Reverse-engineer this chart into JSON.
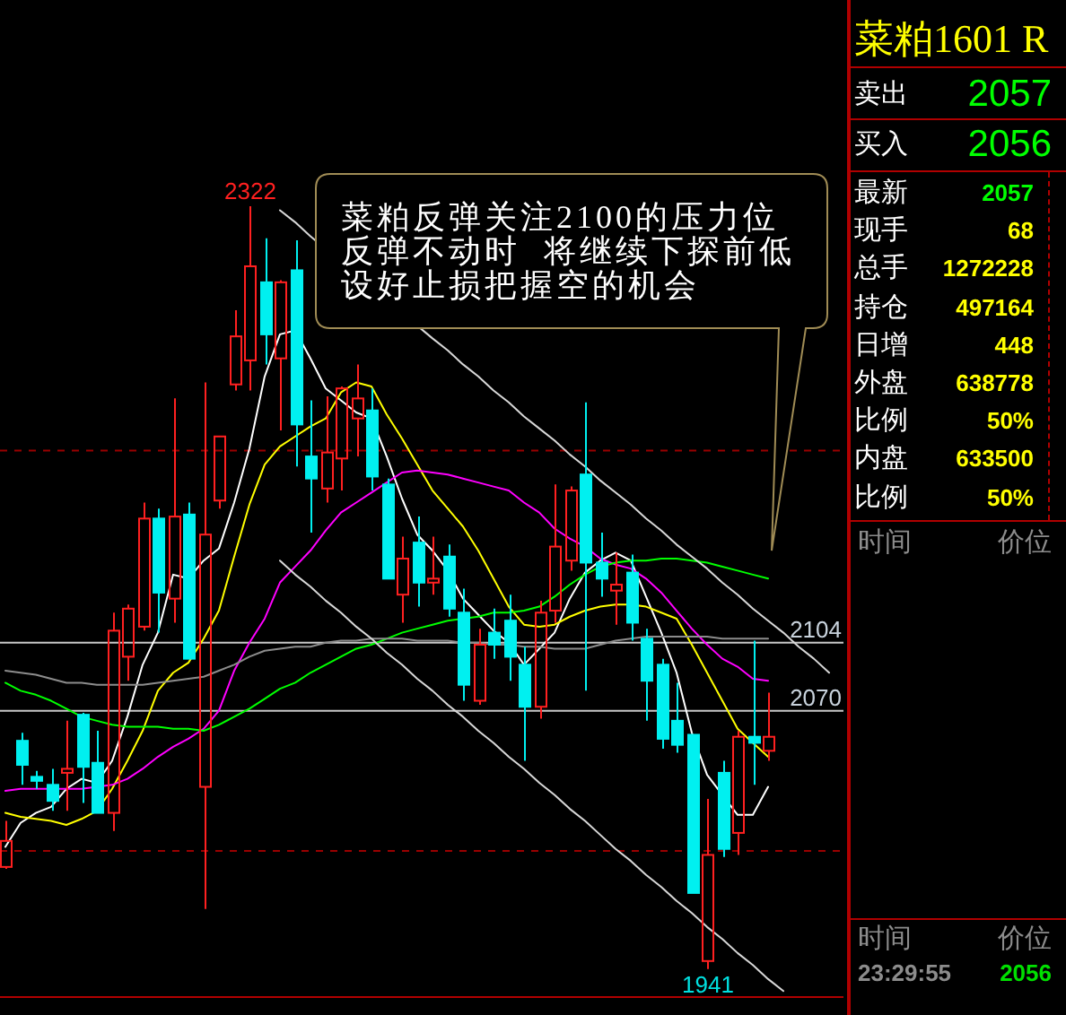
{
  "chart_data": [
    {
      "type": "candlestick",
      "categories": [
        null,
        null,
        null,
        null,
        null,
        null,
        null,
        null,
        null,
        null,
        null,
        null,
        null,
        null,
        null,
        null,
        null,
        null,
        null,
        null,
        null,
        null,
        null,
        null,
        null,
        null,
        null,
        null,
        null,
        null,
        null,
        null,
        null,
        null,
        null,
        null,
        null,
        null,
        null,
        null,
        null,
        null,
        null,
        null,
        null,
        null,
        null,
        null,
        null,
        null,
        null,
        null,
        null,
        null,
        null
      ],
      "ohlc": [
        [
          1992,
          2015,
          1991,
          2005
        ],
        [
          2055,
          2059,
          2033,
          2043
        ],
        [
          2037,
          2040,
          2031,
          2035
        ],
        [
          2033,
          2041,
          2020,
          2025
        ],
        [
          2039,
          2065,
          2020,
          2041
        ],
        [
          2068,
          2069,
          2024,
          2042
        ],
        [
          2044,
          2060,
          2019,
          2019
        ],
        [
          2019,
          2119,
          2010,
          2110
        ],
        [
          2097,
          2123,
          2085,
          2121
        ],
        [
          2112,
          2174,
          2110,
          2166
        ],
        [
          2166,
          2171,
          2109,
          2129
        ],
        [
          2126,
          2226,
          2114,
          2167
        ],
        [
          2168,
          2174,
          2096,
          2096
        ],
        [
          2032,
          2234,
          1971,
          2158
        ],
        [
          2175,
          2207,
          2171,
          2207
        ],
        [
          2233,
          2270,
          2230,
          2257
        ],
        [
          2245,
          2322,
          2230,
          2292
        ],
        [
          2284,
          2306,
          2243,
          2258
        ],
        [
          2246,
          2285,
          2210,
          2284
        ],
        [
          2290,
          2305,
          2192,
          2213
        ],
        [
          2197,
          2225,
          2159,
          2186
        ],
        [
          2181,
          2227,
          2174,
          2199
        ],
        [
          2196,
          2232,
          2180,
          2231
        ],
        [
          2216,
          2243,
          2197,
          2226
        ],
        [
          2220,
          2231,
          2180,
          2187
        ],
        [
          2183,
          2186,
          2136,
          2136
        ],
        [
          2128,
          2157,
          2114,
          2146
        ],
        [
          2154,
          2167,
          2122,
          2134
        ],
        [
          2134,
          2157,
          2128,
          2136
        ],
        [
          2147,
          2153,
          2117,
          2121
        ],
        [
          2119,
          2131,
          2075,
          2083
        ],
        [
          2075,
          2111,
          2073,
          2103
        ],
        [
          2109,
          2121,
          2096,
          2103
        ],
        [
          2115,
          2128,
          2085,
          2097
        ],
        [
          2093,
          2102,
          2045,
          2072
        ],
        [
          2072,
          2125,
          2066,
          2119
        ],
        [
          2120,
          2183,
          2114,
          2152
        ],
        [
          2145,
          2182,
          2140,
          2180
        ],
        [
          2188,
          2224,
          2080,
          2144
        ],
        [
          2144,
          2159,
          2127,
          2136
        ],
        [
          2130,
          2149,
          2113,
          2133
        ],
        [
          2139,
          2148,
          2105,
          2114
        ],
        [
          2106,
          2111,
          2065,
          2085
        ],
        [
          2093,
          2096,
          2051,
          2056
        ],
        [
          2065,
          2084,
          2049,
          2053
        ],
        [
          2058,
          2058,
          1979,
          1979
        ],
        [
          1945,
          2026,
          1941,
          1998
        ],
        [
          2039,
          2045,
          1997,
          2001
        ],
        [
          2009,
          2060,
          1998,
          2057
        ],
        [
          2057,
          2105,
          2033,
          2054
        ],
        [
          2050,
          2079,
          2045,
          2057
        ],
        null,
        null,
        null,
        null
      ],
      "colors": [
        "#ff2020",
        "#00f0f0",
        "#00f0f0",
        "#00f0f0",
        "#ff2020",
        "#00f0f0",
        "#00f0f0",
        "#ff2020",
        "#ff2020",
        "#ff2020",
        "#00f0f0",
        "#ff2020",
        "#00f0f0",
        "#ff2020",
        "#ff2020",
        "#ff2020",
        "#ff2020",
        "#00f0f0",
        "#ff2020",
        "#00f0f0",
        "#00f0f0",
        "#ff2020",
        "#ff2020",
        "#ff2020",
        "#00f0f0",
        "#00f0f0",
        "#ff2020",
        "#00f0f0",
        "#ff2020",
        "#00f0f0",
        "#00f0f0",
        "#ff2020",
        "#00f0f0",
        "#00f0f0",
        "#00f0f0",
        "#ff2020",
        "#ff2020",
        "#ff2020",
        "#00f0f0",
        "#00f0f0",
        "#ff2020",
        "#00f0f0",
        "#00f0f0",
        "#00f0f0",
        "#00f0f0",
        "#00f0f0",
        "#ff2020",
        "#00f0f0",
        "#ff2020",
        "#00f0f0",
        "#ff2020",
        null,
        null,
        null,
        null
      ],
      "series": [
        {
          "type": "line",
          "color": "#ffffff",
          "values": [
            2002,
            2014,
            2019,
            2022,
            2031,
            2036,
            2034,
            2045,
            2067,
            2093,
            2109,
            2138,
            2136,
            2145,
            2151,
            2174,
            2201,
            2237,
            2258,
            2260,
            2246,
            2231,
            2225,
            2219,
            2216,
            2197,
            2176,
            2158,
            2150,
            2140,
            2126,
            2118,
            2110,
            2104,
            2093,
            2101,
            2109,
            2126,
            2139,
            2145,
            2149,
            2145,
            2127,
            2109,
            2089,
            2059,
            2038,
            null,
            2018,
            2018,
            2032,
            null,
            null,
            null,
            null
          ]
        },
        {
          "type": "line",
          "color": "#ffff00",
          "values": [
            2019,
            2017,
            2016,
            2015,
            2013,
            2016,
            2020,
            2031,
            2045,
            2060,
            2080,
            2089,
            2094,
            2106,
            2120,
            2147,
            2173,
            2193,
            2202,
            2207,
            2212,
            2216,
            2229,
            2234,
            2232,
            2218,
            2206,
            2193,
            2180,
            2171,
            2162,
            2150,
            2136,
            2122,
            2113,
            2112,
            2113,
            2117,
            2120,
            2122,
            2123,
            2123,
            2122,
            2119,
            2116,
            2103,
            2089,
            2075,
            2061,
            2054,
            2047,
            null,
            null,
            null,
            null
          ]
        },
        {
          "type": "line",
          "color": "#ff00ff",
          "values": [
            2030,
            2031,
            2031,
            2031,
            2031,
            2031,
            2032,
            2033,
            2036,
            2041,
            2047,
            2052,
            2056,
            2061,
            2070,
            2090,
            2104,
            2116,
            2134,
            2142,
            2150,
            2160,
            2169,
            2174,
            2179,
            2184,
            2189,
            2190,
            2189,
            2188,
            2186,
            2184,
            2182,
            2180,
            2174,
            2169,
            2161,
            2156,
            2152,
            2146,
            2143,
            2141,
            2136,
            2129,
            2120,
            2111,
            2103,
            2096,
            2092,
            2086,
            2085,
            null,
            null,
            null,
            null
          ]
        },
        {
          "type": "line",
          "color": "#00ff00",
          "values": [
            2084,
            2080,
            2078,
            2075,
            2071,
            2067,
            2065,
            2063,
            2062,
            2062,
            2062,
            2061,
            2061,
            2060,
            2063,
            2067,
            2071,
            2076,
            2081,
            2084,
            2089,
            2093,
            2097,
            2101,
            2103,
            2106,
            2109,
            2111,
            2113,
            2115,
            2116,
            2117,
            2119,
            2119,
            2120,
            2122,
            2127,
            2133,
            2138,
            2142,
            2144,
            2145,
            2145,
            2146,
            2146,
            2145,
            2144,
            2142,
            2140,
            2138,
            2136,
            null,
            null,
            null,
            null
          ]
        },
        {
          "type": "line",
          "color": "#8c8c8c",
          "values": [
            2090,
            2089,
            2088,
            2086,
            2084,
            2084,
            2083,
            2083,
            2083,
            2083,
            2084,
            2085,
            2086,
            2087,
            2090,
            2093,
            2097,
            2100,
            2101,
            2102,
            2102,
            2104,
            2105,
            2105,
            2106,
            2106,
            2106,
            2105,
            2105,
            2105,
            2104,
            2104,
            2103,
            2103,
            2102,
            2102,
            2101,
            2101,
            2101,
            2103,
            2105,
            2106,
            2107,
            2107,
            2107,
            2107,
            2107,
            2106,
            2106,
            2106,
            2106,
            null,
            null,
            null,
            null
          ]
        },
        {
          "type": "line",
          "color": "#d8d8d8",
          "values": [
            null,
            null,
            null,
            null,
            null,
            null,
            null,
            null,
            null,
            null,
            null,
            null,
            null,
            null,
            null,
            null,
            null,
            null,
            2320,
            2314,
            2307,
            null,
            null,
            null,
            null,
            null,
            null,
            null,
            2256,
            2250,
            2243,
            2237,
            2230,
            2224,
            2217,
            2211,
            2205,
            2198,
            2192,
            2185,
            2179,
            2173,
            2166,
            2160,
            2153,
            2147,
            2141,
            2134,
            2128,
            2121,
            2115,
            2109,
            2102,
            2096,
            2089
          ]
        },
        {
          "type": "line",
          "color": "#d8d8d8",
          "values": [
            null,
            null,
            null,
            null,
            null,
            null,
            null,
            null,
            null,
            null,
            null,
            null,
            null,
            null,
            null,
            null,
            null,
            null,
            2145,
            2138,
            2132,
            2125,
            2119,
            2112,
            2106,
            2099,
            2093,
            2086,
            2080,
            2073,
            2067,
            2060,
            2054,
            2047,
            2041,
            2034,
            2028,
            2021,
            2015,
            2008,
            2001,
            1995,
            1988,
            1982,
            1975,
            1969,
            1962,
            1956,
            1949,
            1943,
            1936,
            1930,
            null,
            null,
            null
          ]
        }
      ],
      "ylim": [
        1927,
        2425
      ],
      "yticks": [
        {
          "value": 2000,
          "label": null
        },
        {
          "value": 2200,
          "label": null
        }
      ],
      "grid": "y",
      "tick_labels": false,
      "ref_lines": [
        {
          "axis": "y",
          "value": 2104,
          "label": "2104",
          "color": "#c8c8c8"
        },
        {
          "axis": "y",
          "value": 2070,
          "label": "2070",
          "color": "#c8c8c8"
        }
      ],
      "annotations": [
        "菜粕反弹关注2100的压力位",
        "反弹不动时  将继续下探前低",
        "设好止损把握空的机会",
        {
          "text": "2322",
          "y": 2322
        },
        {
          "text": "1941",
          "y": 1941
        }
      ]
    },
    {
      "type": "other",
      "title": "菜粕1601 R",
      "categories": [
        "卖出",
        "买入",
        "最新",
        "现手",
        "总手",
        "持仓",
        "日增",
        "外盘",
        "比例",
        "内盘",
        "比例"
      ],
      "value_labels": [
        "2057",
        "2056",
        "2057",
        "68",
        "1272228",
        "497164",
        "448",
        "638778",
        "50%",
        "633500",
        "50%"
      ],
      "annotations": [
        "时间",
        "价位",
        "时间",
        "价位",
        "23:29:55",
        "2056"
      ]
    }
  ]
}
